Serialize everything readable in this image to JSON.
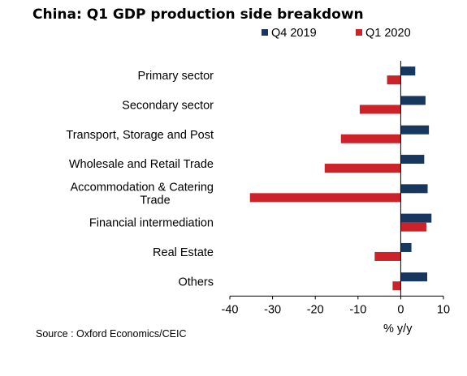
{
  "title": "China: Q1 GDP production side breakdown",
  "source": "Source : Oxford Economics/CEIC",
  "chart_data": {
    "type": "bar",
    "orientation": "horizontal",
    "categories": [
      [
        "Primary sector"
      ],
      [
        "Secondary sector"
      ],
      [
        "Transport, Storage and Post"
      ],
      [
        "Wholesale and Retail Trade"
      ],
      [
        "Accommodation & Catering",
        "Trade"
      ],
      [
        "Financial intermediation"
      ],
      [
        "Real Estate"
      ],
      [
        "Others"
      ]
    ],
    "series": [
      {
        "name": "Q4 2019",
        "color": "#17375e",
        "values": [
          3.4,
          5.8,
          6.6,
          5.5,
          6.3,
          7.2,
          2.5,
          6.2
        ]
      },
      {
        "name": "Q1 2020",
        "color": "#cc2229",
        "values": [
          -3.2,
          -9.6,
          -14.0,
          -17.8,
          -35.3,
          6.0,
          -6.1,
          -1.9
        ]
      }
    ],
    "xlim": [
      -40,
      10
    ],
    "xticks": [
      -40,
      -30,
      -20,
      -10,
      0,
      10
    ],
    "xlabel": "% y/y",
    "ylabel": "",
    "legend": "top-right",
    "grid": false
  }
}
